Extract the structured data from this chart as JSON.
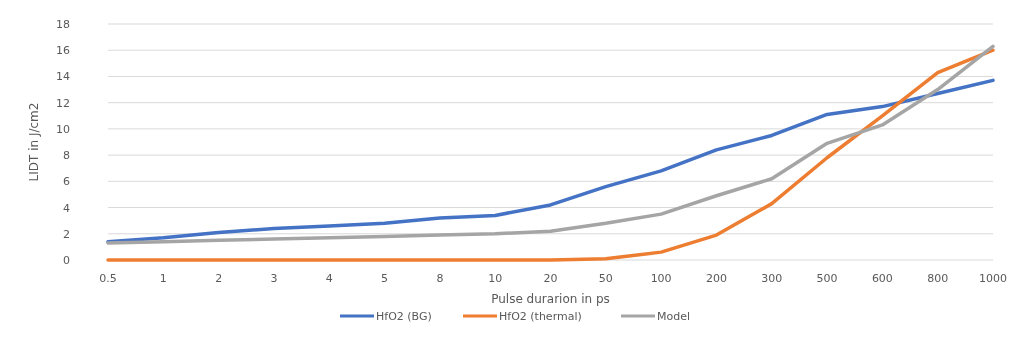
{
  "chart_data": {
    "type": "line",
    "xlabel": "Pulse durarion in ps",
    "ylabel": "LIDT in J/cm2",
    "categories": [
      "0.5",
      "1",
      "2",
      "3",
      "4",
      "5",
      "8",
      "10",
      "20",
      "50",
      "100",
      "200",
      "300",
      "500",
      "600",
      "800",
      "1000"
    ],
    "series": [
      {
        "name": "HfO2 (BG)",
        "color": "#4472c4",
        "values": [
          1.4,
          1.7,
          2.1,
          2.4,
          2.6,
          2.8,
          3.2,
          3.4,
          4.2,
          5.6,
          6.8,
          8.4,
          9.5,
          11.1,
          11.7,
          12.7,
          13.7
        ]
      },
      {
        "name": "HfO2 (thermal)",
        "color": "#ed7d31",
        "values": [
          0,
          0,
          0,
          0,
          0,
          0,
          0,
          0,
          0,
          0.1,
          0.6,
          1.9,
          4.3,
          7.8,
          11,
          14.3,
          16
        ]
      },
      {
        "name": "Model",
        "color": "#a5a5a5",
        "values": [
          1.3,
          1.4,
          1.5,
          1.6,
          1.7,
          1.8,
          1.9,
          2.0,
          2.2,
          2.8,
          3.5,
          4.9,
          6.2,
          8.9,
          10.3,
          13,
          16.3
        ]
      }
    ],
    "ylim": [
      0,
      18
    ],
    "yticks": [
      0,
      2,
      4,
      6,
      8,
      10,
      12,
      14,
      16,
      18
    ],
    "grid": "y",
    "legend": "bottom",
    "marker": "none",
    "line_style": "solid"
  }
}
